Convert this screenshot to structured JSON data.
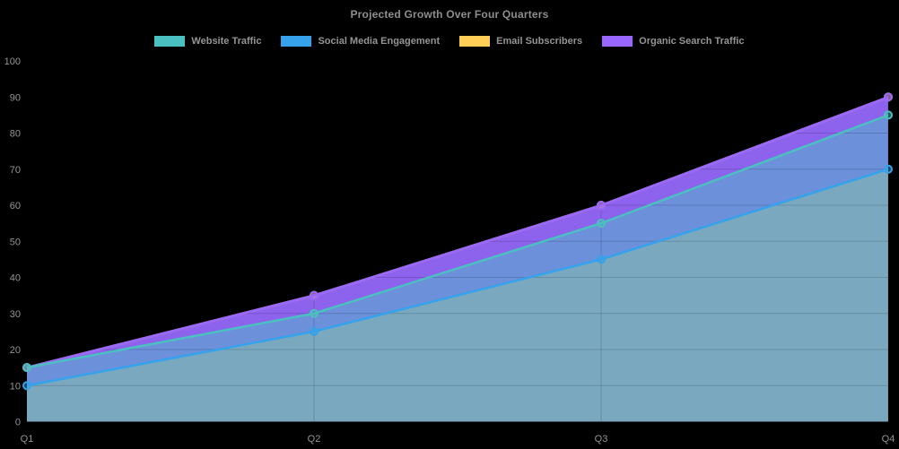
{
  "chart": {
    "background": "#000000",
    "text_color": "#949494",
    "title_color": "#8e8e8e"
  },
  "chart_data": {
    "type": "area",
    "title": "Projected Growth Over Four Quarters",
    "categories": [
      "Q1",
      "Q2",
      "Q3",
      "Q4"
    ],
    "series": [
      {
        "name": "Website Traffic",
        "color": "#4BC0C0",
        "values": [
          15,
          30,
          55,
          85
        ]
      },
      {
        "name": "Social Media Engagement",
        "color": "#36A2EB",
        "values": [
          10,
          25,
          45,
          70
        ]
      },
      {
        "name": "Email Subscribers",
        "color": "#FFCE56",
        "values": [
          15,
          35,
          60,
          90
        ],
        "occluded_by": "Organic Search Traffic"
      },
      {
        "name": "Organic Search Traffic",
        "color": "#9966FF",
        "values": [
          15,
          35,
          60,
          90
        ]
      }
    ],
    "xlabel": "",
    "ylabel": "",
    "ylim": [
      0,
      100
    ],
    "yticks": [
      0,
      10,
      20,
      30,
      40,
      50,
      60,
      70,
      80,
      90,
      100
    ],
    "grid": true,
    "legend_position": "top",
    "visual": {
      "band_fills": [
        {
          "top": "Social Media Engagement",
          "bottom": null,
          "color": "#7AA9BF"
        },
        {
          "top": "Website Traffic",
          "bottom": "Social Media Engagement",
          "color": "#6C90DA"
        },
        {
          "top": "Organic Search Traffic",
          "bottom": "Website Traffic",
          "color": "#8D63EE"
        }
      ],
      "draw_order": [
        "Email Subscribers",
        "Organic Search Traffic",
        "Social Media Engagement",
        "Website Traffic"
      ],
      "grid_color": "rgba(0,0,0,0.16)",
      "vgrid_categories": [
        "Q2",
        "Q3",
        "Q4"
      ]
    }
  }
}
